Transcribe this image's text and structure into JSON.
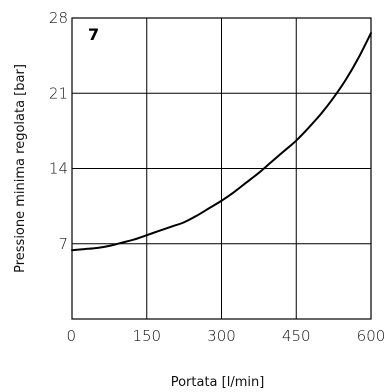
{
  "chart_data": {
    "type": "line",
    "panel_label": "7",
    "xlabel": "Portata [l/min]",
    "ylabel": "Pressione minima regolata [bar]",
    "xlim": [
      0,
      600
    ],
    "ylim": [
      0,
      28
    ],
    "x_ticks": [
      0,
      150,
      300,
      450,
      600
    ],
    "y_ticks": [
      7,
      14,
      21,
      28
    ],
    "x_tick_labels": [
      "0",
      "150",
      "300",
      "450",
      "600"
    ],
    "y_tick_labels": [
      "7",
      "14",
      "21",
      "28"
    ],
    "grid": true,
    "series": [
      {
        "x": [
          0,
          25,
          50,
          75,
          100,
          125,
          150,
          175,
          200,
          225,
          250,
          275,
          300,
          325,
          350,
          375,
          400,
          425,
          450,
          475,
          500,
          525,
          550,
          575,
          600
        ],
        "y": [
          6.4,
          6.5,
          6.6,
          6.8,
          7.1,
          7.4,
          7.8,
          8.2,
          8.6,
          9.0,
          9.6,
          10.3,
          11.0,
          11.8,
          12.7,
          13.6,
          14.6,
          15.6,
          16.6,
          17.8,
          19.1,
          20.6,
          22.3,
          24.3,
          26.6
        ]
      }
    ],
    "colors": {
      "line": "#000000",
      "grid": "#000000",
      "background": "#ffffff"
    }
  }
}
